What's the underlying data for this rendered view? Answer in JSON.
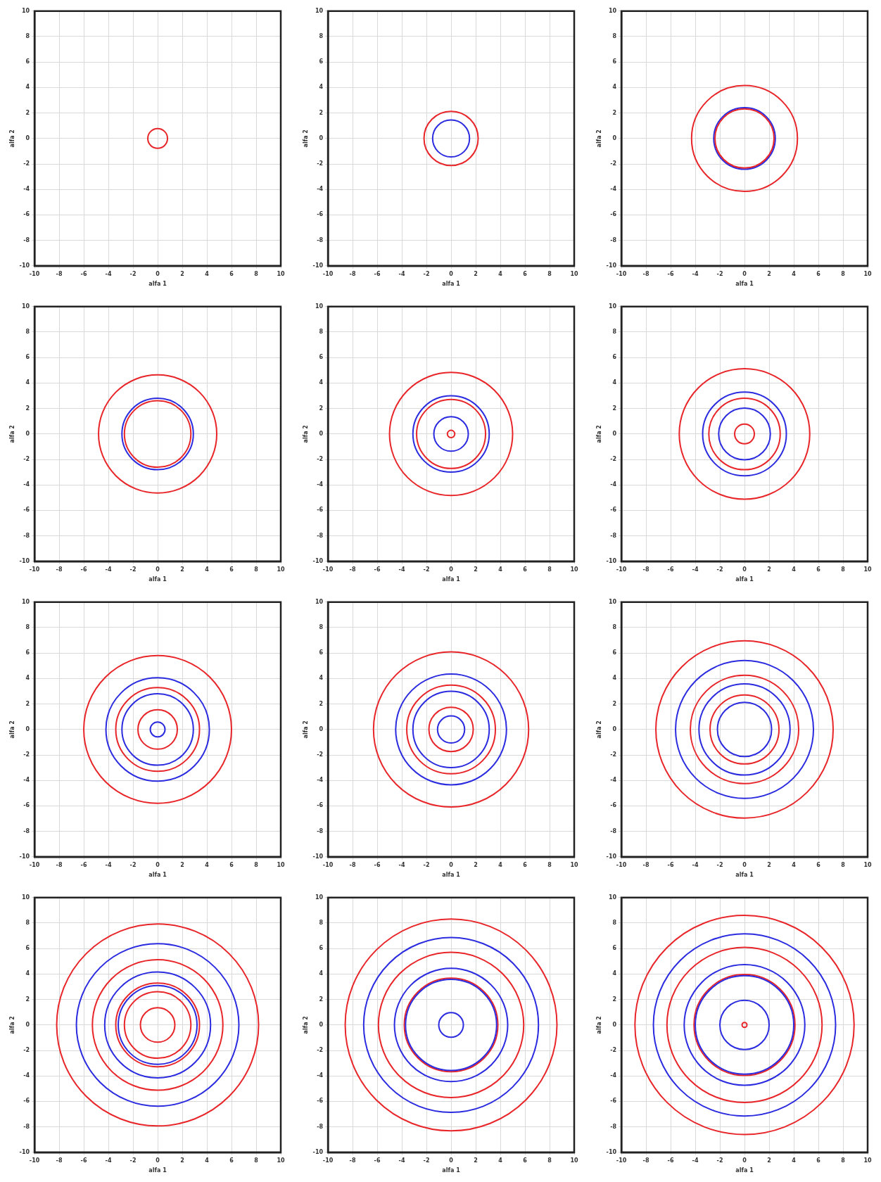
{
  "chart_data": [
    {
      "type": "line",
      "xlabel": "alfa 1",
      "ylabel": "alfa 2",
      "xlim": [
        -10,
        10
      ],
      "ylim": [
        -10,
        10
      ],
      "xticks": [
        -10,
        -8,
        -6,
        -4,
        -2,
        0,
        2,
        4,
        6,
        8,
        10
      ],
      "yticks": [
        -10,
        -8,
        -6,
        -4,
        -2,
        0,
        2,
        4,
        6,
        8,
        10
      ],
      "grid": true
    },
    {
      "type": "line",
      "xlabel": "alfa 1",
      "ylabel": "alfa 2",
      "xlim": [
        -10,
        10
      ],
      "ylim": [
        -10,
        10
      ],
      "xticks": [
        -10,
        -8,
        -6,
        -4,
        -2,
        0,
        2,
        4,
        6,
        8,
        10
      ],
      "yticks": [
        -10,
        -8,
        -6,
        -4,
        -2,
        0,
        2,
        4,
        6,
        8,
        10
      ],
      "grid": true
    },
    {
      "type": "line",
      "xlabel": "alfa 1",
      "ylabel": "alfa 2",
      "xlim": [
        -10,
        10
      ],
      "ylim": [
        -10,
        10
      ],
      "xticks": [
        -10,
        -8,
        -6,
        -4,
        -2,
        0,
        2,
        4,
        6,
        8,
        10
      ],
      "yticks": [
        -10,
        -8,
        -6,
        -4,
        -2,
        0,
        2,
        4,
        6,
        8,
        10
      ],
      "grid": true
    },
    {
      "type": "line",
      "xlabel": "alfa 1",
      "ylabel": "alfa 2",
      "xlim": [
        -10,
        10
      ],
      "ylim": [
        -10,
        10
      ],
      "xticks": [
        -10,
        -8,
        -6,
        -4,
        -2,
        0,
        2,
        4,
        6,
        8,
        10
      ],
      "yticks": [
        -10,
        -8,
        -6,
        -4,
        -2,
        0,
        2,
        4,
        6,
        8,
        10
      ],
      "grid": true
    },
    {
      "type": "line",
      "xlabel": "alfa 1",
      "ylabel": "alfa 2",
      "xlim": [
        -10,
        10
      ],
      "ylim": [
        -10,
        10
      ],
      "xticks": [
        -10,
        -8,
        -6,
        -4,
        -2,
        0,
        2,
        4,
        6,
        8,
        10
      ],
      "yticks": [
        -10,
        -8,
        -6,
        -4,
        -2,
        0,
        2,
        4,
        6,
        8,
        10
      ],
      "grid": true
    },
    {
      "type": "line",
      "xlabel": "alfa 1",
      "ylabel": "alfa 2",
      "xlim": [
        -10,
        10
      ],
      "ylim": [
        -10,
        10
      ],
      "xticks": [
        -10,
        -8,
        -6,
        -4,
        -2,
        0,
        2,
        4,
        6,
        8,
        10
      ],
      "yticks": [
        -10,
        -8,
        -6,
        -4,
        -2,
        0,
        2,
        4,
        6,
        8,
        10
      ],
      "grid": true
    },
    {
      "type": "line",
      "xlabel": "alfa 1",
      "ylabel": "alfa 2",
      "xlim": [
        -10,
        10
      ],
      "ylim": [
        -10,
        10
      ],
      "xticks": [
        -10,
        -8,
        -6,
        -4,
        -2,
        0,
        2,
        4,
        6,
        8,
        10
      ],
      "yticks": [
        -10,
        -8,
        -6,
        -4,
        -2,
        0,
        2,
        4,
        6,
        8,
        10
      ],
      "grid": true
    },
    {
      "type": "line",
      "xlabel": "alfa 1",
      "ylabel": "alfa 2",
      "xlim": [
        -10,
        10
      ],
      "ylim": [
        -10,
        10
      ],
      "xticks": [
        -10,
        -8,
        -6,
        -4,
        -2,
        0,
        2,
        4,
        6,
        8,
        10
      ],
      "yticks": [
        -10,
        -8,
        -6,
        -4,
        -2,
        0,
        2,
        4,
        6,
        8,
        10
      ],
      "grid": true
    },
    {
      "type": "line",
      "xlabel": "alfa 1",
      "ylabel": "alfa 2",
      "xlim": [
        -10,
        10
      ],
      "ylim": [
        -10,
        10
      ],
      "xticks": [
        -10,
        -8,
        -6,
        -4,
        -2,
        0,
        2,
        4,
        6,
        8,
        10
      ],
      "yticks": [
        -10,
        -8,
        -6,
        -4,
        -2,
        0,
        2,
        4,
        6,
        8,
        10
      ],
      "grid": true
    },
    {
      "type": "line",
      "xlabel": "alfa 1",
      "ylabel": "alfa 2",
      "xlim": [
        -10,
        10
      ],
      "ylim": [
        -10,
        10
      ],
      "xticks": [
        -10,
        -8,
        -6,
        -4,
        -2,
        0,
        2,
        4,
        6,
        8,
        10
      ],
      "yticks": [
        -10,
        -8,
        -6,
        -4,
        -2,
        0,
        2,
        4,
        6,
        8,
        10
      ],
      "grid": true
    },
    {
      "type": "line",
      "xlabel": "alfa 1",
      "ylabel": "alfa 2",
      "xlim": [
        -10,
        10
      ],
      "ylim": [
        -10,
        10
      ],
      "xticks": [
        -10,
        -8,
        -6,
        -4,
        -2,
        0,
        2,
        4,
        6,
        8,
        10
      ],
      "yticks": [
        -10,
        -8,
        -6,
        -4,
        -2,
        0,
        2,
        4,
        6,
        8,
        10
      ],
      "grid": true
    },
    {
      "type": "line",
      "xlabel": "alfa 1",
      "ylabel": "alfa 2",
      "xlim": [
        -10,
        10
      ],
      "ylim": [
        -10,
        10
      ],
      "xticks": [
        -10,
        -8,
        -6,
        -4,
        -2,
        0,
        2,
        4,
        6,
        8,
        10
      ],
      "yticks": [
        -10,
        -8,
        -6,
        -4,
        -2,
        0,
        2,
        4,
        6,
        8,
        10
      ],
      "grid": true
    }
  ]
}
